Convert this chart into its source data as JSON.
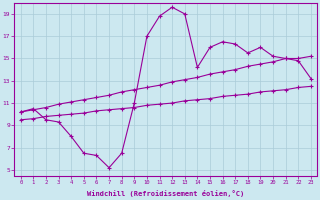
{
  "xlabel": "Windchill (Refroidissement éolien,°C)",
  "bg_color": "#cce8f0",
  "line_color": "#990099",
  "xlim": [
    -0.5,
    23.5
  ],
  "ylim": [
    4.5,
    20
  ],
  "xticks": [
    0,
    1,
    2,
    3,
    4,
    5,
    6,
    7,
    8,
    9,
    10,
    11,
    12,
    13,
    14,
    15,
    16,
    17,
    18,
    19,
    20,
    21,
    22,
    23
  ],
  "yticks": [
    5,
    7,
    9,
    11,
    13,
    15,
    17,
    19
  ],
  "line1_x": [
    0,
    1,
    2,
    3,
    4,
    5,
    6,
    7,
    8,
    9,
    10,
    11,
    12,
    13,
    14,
    15,
    16,
    17,
    18,
    19,
    20,
    21,
    22,
    23
  ],
  "line1_y": [
    10.2,
    10.5,
    9.5,
    9.3,
    8.0,
    6.5,
    6.3,
    5.2,
    6.5,
    11.0,
    17.0,
    18.8,
    19.6,
    19.0,
    14.2,
    16.0,
    16.5,
    16.3,
    15.5,
    16.0,
    15.2,
    15.0,
    14.8,
    13.2
  ],
  "line2_x": [
    0,
    1,
    2,
    3,
    4,
    5,
    6,
    7,
    8,
    9,
    10,
    11,
    12,
    13,
    14,
    15,
    16,
    17,
    18,
    19,
    20,
    21,
    22,
    23
  ],
  "line2_y": [
    10.2,
    10.4,
    10.6,
    10.9,
    11.1,
    11.3,
    11.5,
    11.7,
    12.0,
    12.2,
    12.4,
    12.6,
    12.9,
    13.1,
    13.3,
    13.6,
    13.8,
    14.0,
    14.3,
    14.5,
    14.7,
    15.0,
    15.0,
    15.2
  ],
  "line3_x": [
    0,
    1,
    2,
    3,
    4,
    5,
    6,
    7,
    8,
    9,
    10,
    11,
    12,
    13,
    14,
    15,
    16,
    17,
    18,
    19,
    20,
    21,
    22,
    23
  ],
  "line3_y": [
    9.5,
    9.6,
    9.8,
    9.9,
    10.0,
    10.1,
    10.3,
    10.4,
    10.5,
    10.6,
    10.8,
    10.9,
    11.0,
    11.2,
    11.3,
    11.4,
    11.6,
    11.7,
    11.8,
    12.0,
    12.1,
    12.2,
    12.4,
    12.5
  ]
}
